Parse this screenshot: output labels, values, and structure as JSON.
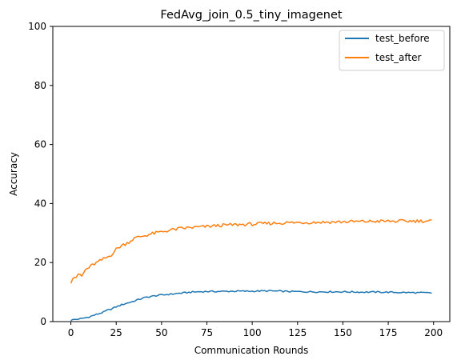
{
  "chart_data": {
    "type": "line",
    "title": "FedAvg_join_0.5_tiny_imagenet",
    "xlabel": "Communication Rounds",
    "ylabel": "Accuracy",
    "xlim": [
      -9.95,
      208.95
    ],
    "ylim": [
      0,
      100
    ],
    "xticks": [
      0,
      25,
      50,
      75,
      100,
      125,
      150,
      175,
      200
    ],
    "yticks": [
      0,
      20,
      40,
      60,
      80,
      100
    ],
    "grid": false,
    "legend_position": "top-right",
    "x": {
      "start": 0,
      "end": 199,
      "step": 1
    },
    "series": [
      {
        "name": "test_before",
        "color": "#1f77b4",
        "anchors": [
          [
            0,
            0.5
          ],
          [
            2,
            0.7
          ],
          [
            5,
            0.9
          ],
          [
            8,
            1.3
          ],
          [
            10,
            1.6
          ],
          [
            12,
            2.0
          ],
          [
            15,
            2.6
          ],
          [
            18,
            3.2
          ],
          [
            20,
            3.8
          ],
          [
            22,
            4.2
          ],
          [
            25,
            5.0
          ],
          [
            28,
            5.7
          ],
          [
            30,
            6.1
          ],
          [
            33,
            6.6
          ],
          [
            35,
            7.0
          ],
          [
            38,
            7.6
          ],
          [
            40,
            8.0
          ],
          [
            43,
            8.4
          ],
          [
            45,
            8.6
          ],
          [
            48,
            8.9
          ],
          [
            50,
            9.0
          ],
          [
            55,
            9.3
          ],
          [
            60,
            9.6
          ],
          [
            65,
            9.9
          ],
          [
            70,
            10.1
          ],
          [
            75,
            10.2
          ],
          [
            80,
            10.2
          ],
          [
            90,
            10.3
          ],
          [
            100,
            10.3
          ],
          [
            110,
            10.4
          ],
          [
            120,
            10.2
          ],
          [
            130,
            10.1
          ],
          [
            140,
            10.1
          ],
          [
            150,
            10.1
          ],
          [
            160,
            10.0
          ],
          [
            170,
            10.0
          ],
          [
            180,
            9.9
          ],
          [
            190,
            9.8
          ],
          [
            199,
            9.7
          ]
        ],
        "noise": 0.25
      },
      {
        "name": "test_after",
        "color": "#ff7f0e",
        "anchors": [
          [
            0,
            13.5
          ],
          [
            1,
            15.0
          ],
          [
            3,
            15.2
          ],
          [
            5,
            16.0
          ],
          [
            6,
            15.3
          ],
          [
            8,
            17.5
          ],
          [
            10,
            18.3
          ],
          [
            12,
            19.2
          ],
          [
            15,
            20.2
          ],
          [
            18,
            21.2
          ],
          [
            20,
            21.8
          ],
          [
            22,
            22.5
          ],
          [
            25,
            24.5
          ],
          [
            28,
            25.8
          ],
          [
            30,
            26.3
          ],
          [
            32,
            27.0
          ],
          [
            35,
            28.2
          ],
          [
            38,
            28.8
          ],
          [
            40,
            29.0
          ],
          [
            45,
            29.8
          ],
          [
            50,
            30.4
          ],
          [
            55,
            31.0
          ],
          [
            60,
            31.5
          ],
          [
            65,
            31.8
          ],
          [
            70,
            32.0
          ],
          [
            75,
            32.2
          ],
          [
            80,
            32.5
          ],
          [
            90,
            32.8
          ],
          [
            100,
            33.0
          ],
          [
            110,
            33.3
          ],
          [
            120,
            33.5
          ],
          [
            130,
            33.6
          ],
          [
            140,
            33.7
          ],
          [
            150,
            33.8
          ],
          [
            160,
            33.9
          ],
          [
            170,
            34.0
          ],
          [
            180,
            34.0
          ],
          [
            190,
            34.1
          ],
          [
            199,
            34.1
          ]
        ],
        "noise": 0.55
      }
    ]
  }
}
